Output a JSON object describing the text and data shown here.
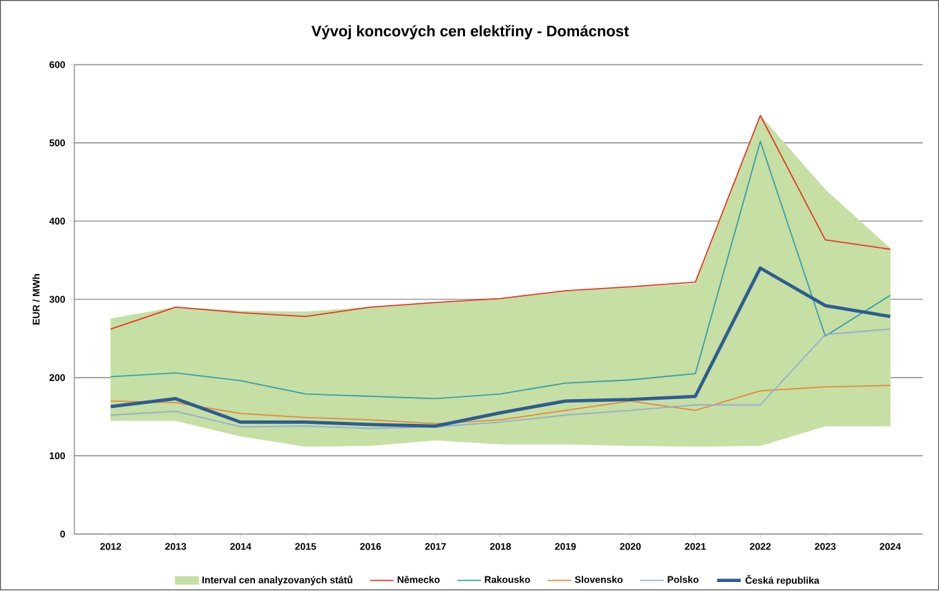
{
  "chart_data": {
    "type": "line",
    "title": "Vývoj koncových cen elektřiny - Domácnost",
    "ylabel": "EUR / MWh",
    "categories": [
      "2012",
      "2013",
      "2014",
      "2015",
      "2016",
      "2017",
      "2018",
      "2019",
      "2020",
      "2021",
      "2022",
      "2023",
      "2024"
    ],
    "series": [
      {
        "name": "Interval cen analyzovaných států",
        "type": "area",
        "color": "#c6dfa4",
        "values": [
          null,
          null,
          null,
          null,
          null,
          null,
          null,
          null,
          null,
          null,
          null,
          null,
          null
        ],
        "lower": [
          145,
          145,
          125,
          112,
          113,
          120,
          115,
          115,
          113,
          112,
          113,
          138,
          138
        ],
        "upper": [
          275,
          290,
          285,
          284,
          290,
          295,
          300,
          310,
          315,
          320,
          535,
          440,
          365
        ]
      },
      {
        "name": "Německo",
        "color": "#e8382b",
        "values": [
          262,
          290,
          283,
          278,
          290,
          296,
          301,
          311,
          316,
          322,
          535,
          376,
          364
        ]
      },
      {
        "name": "Rakousko",
        "color": "#3a9ea8",
        "values": [
          201,
          206,
          196,
          179,
          176,
          173,
          179,
          193,
          197,
          205,
          502,
          253,
          305
        ]
      },
      {
        "name": "Slovensko",
        "color": "#e5893a",
        "values": [
          170,
          168,
          154,
          149,
          146,
          141,
          146,
          158,
          170,
          158,
          183,
          188,
          190
        ]
      },
      {
        "name": "Polsko",
        "color": "#96aed0",
        "values": [
          152,
          157,
          137,
          138,
          135,
          137,
          143,
          152,
          158,
          165,
          165,
          255,
          262
        ]
      },
      {
        "name": "Česká republika",
        "color": "#2e5c92",
        "values": [
          163,
          173,
          143,
          143,
          140,
          138,
          155,
          170,
          172,
          176,
          340,
          292,
          278
        ]
      }
    ],
    "ylim": [
      0,
      600
    ],
    "yticks": [
      0,
      100,
      200,
      300,
      400,
      500,
      600
    ],
    "grid": "y",
    "legend": "bottom"
  }
}
